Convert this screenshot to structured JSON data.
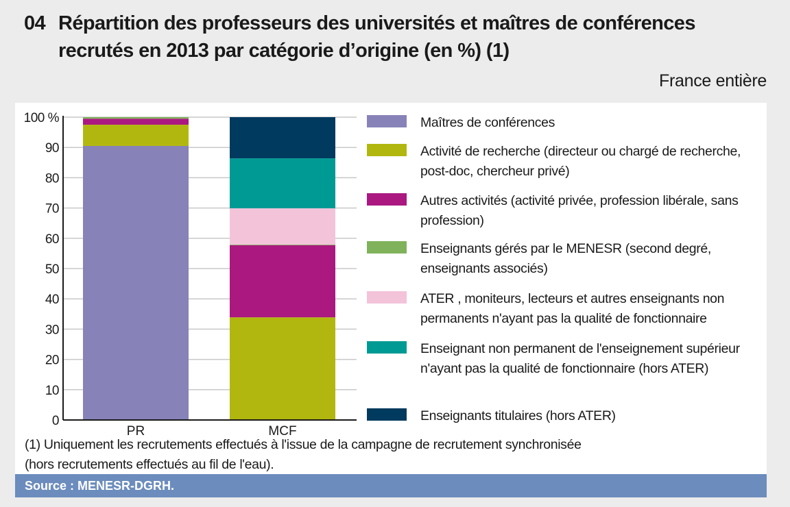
{
  "title_number": "04",
  "title_line1": "Répartition des professeurs des universités et maîtres de conférences",
  "title_line2": "recrutés en 2013 par catégorie d’origine (en %) (1)",
  "scope": "France entière",
  "note_line1": "(1) Uniquement les recrutements effectués à l'issue de la campagne de recrutement synchronisée",
  "note_line2": "(hors recrutements effectués au fil de l'eau).",
  "source": "Source : MENESR-DGRH.",
  "chart_data": {
    "type": "bar",
    "stacked": true,
    "categories": [
      "PR",
      "MCF"
    ],
    "ylim": [
      0,
      100
    ],
    "yticks": [
      "0",
      "10",
      "20",
      "30",
      "40",
      "50",
      "60",
      "70",
      "80",
      "90",
      "100 %"
    ],
    "grid": true,
    "legend_placement": "right",
    "series": [
      {
        "name": "Maîtres de conférences",
        "color": "#8782b8",
        "values": [
          90.5,
          0
        ]
      },
      {
        "name": "Activité de recherche (directeur ou  chargé de recherche, post-doc, chercheur privé)",
        "color": "#b1b70f",
        "values": [
          7.0,
          33.9
        ]
      },
      {
        "name": "Autres activités (activité privée, profession libérale, sans profession)",
        "color": "#ab1880",
        "values": [
          2.0,
          23.8
        ]
      },
      {
        "name": "Enseignants gérés par le MENESR (second degré, enseignants associés)",
        "color": "#7fb25a",
        "values": [
          0.5,
          0.2
        ]
      },
      {
        "name": "ATER , moniteurs, lecteurs et autres enseignants non permanents n'ayant pas la qualité de fonctionnaire",
        "color": "#f3c3da",
        "values": [
          0,
          12.0
        ]
      },
      {
        "name": "Enseignant non permanent de l'enseignement supérieur n'ayant pas la qualité de fonctionnaire (hors ATER)",
        "color": "#009a94",
        "values": [
          0,
          16.5
        ]
      },
      {
        "name": "Enseignants titulaires (hors ATER)",
        "color": "#003a5f",
        "values": [
          0,
          13.6
        ]
      }
    ]
  }
}
